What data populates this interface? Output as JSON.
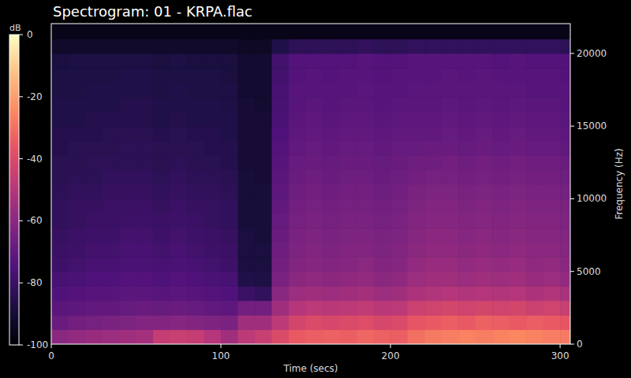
{
  "chart_data": {
    "type": "spectrogram",
    "title": "Spectrogram: 01 - KRPA.flac",
    "x_label": "Time (secs)",
    "y_label": "Frequency (Hz)",
    "xlim": [
      0,
      306
    ],
    "xticks": [
      0,
      100,
      200,
      300
    ],
    "ylim": [
      0,
      22050
    ],
    "yticks": [
      0,
      5000,
      10000,
      15000,
      20000
    ],
    "time_bins": [
      0,
      10,
      20,
      30,
      40,
      50,
      60,
      70,
      80,
      90,
      100,
      110,
      120,
      130,
      140,
      150,
      160,
      170,
      180,
      190,
      200,
      210,
      220,
      230,
      240,
      250,
      260,
      270,
      280,
      290,
      300,
      310
    ],
    "frequency_bins": [
      0,
      1000,
      2000,
      3000,
      4000,
      5000,
      6000,
      7000,
      8000,
      9000,
      10000,
      11000,
      12000,
      13000,
      14000,
      15000,
      16000,
      17000,
      18000,
      19000,
      20000,
      21000,
      22050
    ],
    "cells": [
      [
        -60,
        -58,
        -57,
        -56,
        -55,
        -54,
        -46,
        -45,
        -46,
        -50,
        -55,
        -48,
        -45,
        -40,
        -35,
        -34,
        -33,
        -34,
        -32,
        -33,
        -34,
        -30,
        -28,
        -27,
        -26,
        -27,
        -26,
        -25,
        -26,
        -27,
        -28
      ],
      [
        -68,
        -66,
        -65,
        -64,
        -63,
        -62,
        -62,
        -61,
        -62,
        -63,
        -64,
        -55,
        -55,
        -48,
        -42,
        -40,
        -41,
        -40,
        -39,
        -41,
        -40,
        -36,
        -35,
        -34,
        -35,
        -33,
        -34,
        -35,
        -34,
        -35,
        -36
      ],
      [
        -72,
        -71,
        -70,
        -70,
        -69,
        -68,
        -69,
        -68,
        -69,
        -70,
        -71,
        -66,
        -66,
        -55,
        -50,
        -48,
        -49,
        -48,
        -47,
        -49,
        -48,
        -44,
        -43,
        -42,
        -43,
        -42,
        -43,
        -42,
        -44,
        -43,
        -45
      ],
      [
        -75,
        -74,
        -73,
        -73,
        -72,
        -72,
        -73,
        -72,
        -73,
        -74,
        -75,
        -80,
        -82,
        -60,
        -56,
        -55,
        -56,
        -55,
        -54,
        -56,
        -55,
        -52,
        -51,
        -50,
        -51,
        -50,
        -51,
        -50,
        -52,
        -51,
        -53
      ],
      [
        -77,
        -76,
        -75,
        -75,
        -74,
        -74,
        -75,
        -74,
        -75,
        -76,
        -77,
        -86,
        -87,
        -64,
        -60,
        -59,
        -60,
        -59,
        -58,
        -60,
        -59,
        -56,
        -55,
        -55,
        -56,
        -55,
        -56,
        -55,
        -57,
        -56,
        -58
      ],
      [
        -79,
        -78,
        -77,
        -77,
        -76,
        -76,
        -77,
        -76,
        -77,
        -78,
        -79,
        -88,
        -88,
        -66,
        -62,
        -61,
        -62,
        -61,
        -60,
        -62,
        -61,
        -58,
        -57,
        -57,
        -58,
        -57,
        -58,
        -57,
        -59,
        -58,
        -60
      ],
      [
        -80,
        -79,
        -78,
        -78,
        -77,
        -77,
        -78,
        -77,
        -78,
        -79,
        -80,
        -88,
        -88,
        -67,
        -63,
        -62,
        -63,
        -62,
        -62,
        -63,
        -62,
        -60,
        -59,
        -59,
        -60,
        -59,
        -60,
        -59,
        -60,
        -60,
        -61
      ],
      [
        -81,
        -80,
        -79,
        -79,
        -78,
        -78,
        -79,
        -78,
        -79,
        -80,
        -81,
        -88,
        -89,
        -68,
        -64,
        -63,
        -64,
        -63,
        -63,
        -64,
        -63,
        -61,
        -60,
        -60,
        -61,
        -60,
        -61,
        -60,
        -61,
        -61,
        -62
      ],
      [
        -82,
        -81,
        -80,
        -80,
        -79,
        -79,
        -80,
        -79,
        -80,
        -81,
        -82,
        -89,
        -89,
        -69,
        -65,
        -64,
        -65,
        -64,
        -64,
        -65,
        -64,
        -62,
        -61,
        -61,
        -62,
        -61,
        -62,
        -61,
        -62,
        -62,
        -63
      ],
      [
        -82,
        -81,
        -81,
        -80,
        -80,
        -80,
        -81,
        -80,
        -81,
        -81,
        -82,
        -89,
        -89,
        -70,
        -66,
        -65,
        -66,
        -65,
        -65,
        -66,
        -65,
        -63,
        -62,
        -62,
        -63,
        -62,
        -63,
        -62,
        -63,
        -63,
        -64
      ],
      [
        -83,
        -82,
        -82,
        -81,
        -81,
        -81,
        -82,
        -81,
        -82,
        -82,
        -83,
        -89,
        -89,
        -71,
        -67,
        -66,
        -67,
        -66,
        -66,
        -67,
        -66,
        -64,
        -63,
        -63,
        -64,
        -63,
        -64,
        -63,
        -64,
        -64,
        -65
      ],
      [
        -84,
        -83,
        -83,
        -82,
        -82,
        -82,
        -83,
        -82,
        -83,
        -83,
        -84,
        -89,
        -90,
        -72,
        -68,
        -67,
        -68,
        -67,
        -67,
        -68,
        -67,
        -66,
        -65,
        -65,
        -66,
        -65,
        -66,
        -65,
        -66,
        -66,
        -67
      ],
      [
        -84,
        -84,
        -83,
        -83,
        -83,
        -83,
        -84,
        -83,
        -84,
        -84,
        -85,
        -90,
        -90,
        -73,
        -69,
        -68,
        -69,
        -68,
        -68,
        -69,
        -68,
        -67,
        -67,
        -66,
        -67,
        -66,
        -67,
        -66,
        -67,
        -67,
        -68
      ],
      [
        -85,
        -84,
        -84,
        -84,
        -83,
        -83,
        -84,
        -84,
        -84,
        -85,
        -85,
        -90,
        -90,
        -74,
        -70,
        -69,
        -70,
        -69,
        -69,
        -70,
        -69,
        -69,
        -68,
        -68,
        -69,
        -68,
        -69,
        -68,
        -69,
        -69,
        -70
      ],
      [
        -85,
        -85,
        -85,
        -84,
        -84,
        -84,
        -85,
        -84,
        -85,
        -85,
        -86,
        -90,
        -90,
        -75,
        -71,
        -70,
        -71,
        -70,
        -70,
        -71,
        -70,
        -70,
        -70,
        -69,
        -70,
        -69,
        -70,
        -69,
        -70,
        -70,
        -71
      ],
      [
        -86,
        -86,
        -85,
        -85,
        -85,
        -85,
        -86,
        -85,
        -86,
        -86,
        -86,
        -90,
        -90,
        -76,
        -72,
        -71,
        -72,
        -71,
        -71,
        -72,
        -71,
        -71,
        -71,
        -70,
        -71,
        -70,
        -71,
        -70,
        -71,
        -71,
        -72
      ],
      [
        -86,
        -86,
        -86,
        -86,
        -85,
        -85,
        -86,
        -86,
        -86,
        -86,
        -87,
        -90,
        -91,
        -77,
        -73,
        -72,
        -73,
        -72,
        -72,
        -73,
        -72,
        -72,
        -72,
        -71,
        -72,
        -71,
        -72,
        -71,
        -72,
        -72,
        -73
      ],
      [
        -87,
        -87,
        -86,
        -86,
        -86,
        -86,
        -87,
        -86,
        -87,
        -87,
        -87,
        -91,
        -91,
        -77,
        -73,
        -73,
        -73,
        -73,
        -72,
        -73,
        -73,
        -72,
        -72,
        -72,
        -72,
        -72,
        -72,
        -72,
        -73,
        -73,
        -73
      ],
      [
        -87,
        -87,
        -87,
        -87,
        -86,
        -86,
        -87,
        -87,
        -87,
        -87,
        -88,
        -91,
        -91,
        -78,
        -74,
        -73,
        -74,
        -73,
        -73,
        -74,
        -73,
        -73,
        -73,
        -72,
        -73,
        -72,
        -73,
        -73,
        -73,
        -73,
        -74
      ],
      [
        -88,
        -87,
        -87,
        -87,
        -87,
        -87,
        -88,
        -87,
        -88,
        -88,
        -88,
        -91,
        -91,
        -78,
        -74,
        -74,
        -74,
        -74,
        -73,
        -74,
        -74,
        -73,
        -73,
        -73,
        -73,
        -73,
        -74,
        -73,
        -74,
        -74,
        -74
      ],
      [
        -92,
        -92,
        -92,
        -92,
        -92,
        -92,
        -92,
        -92,
        -92,
        -92,
        -92,
        -93,
        -93,
        -86,
        -83,
        -83,
        -83,
        -83,
        -82,
        -83,
        -83,
        -82,
        -82,
        -82,
        -82,
        -82,
        -82,
        -82,
        -82,
        -82,
        -83
      ],
      [
        -96,
        -96,
        -96,
        -96,
        -96,
        -96,
        -96,
        -96,
        -96,
        -96,
        -96,
        -96,
        -96,
        -96,
        -96,
        -96,
        -96,
        -96,
        -96,
        -96,
        -96,
        -96,
        -96,
        -96,
        -96,
        -96,
        -96,
        -96,
        -96,
        -96,
        -96
      ]
    ],
    "colorbar": {
      "label": "dB",
      "lim": [
        -100,
        0
      ],
      "ticks": [
        -100,
        -80,
        -60,
        -40,
        -20,
        0
      ]
    }
  }
}
